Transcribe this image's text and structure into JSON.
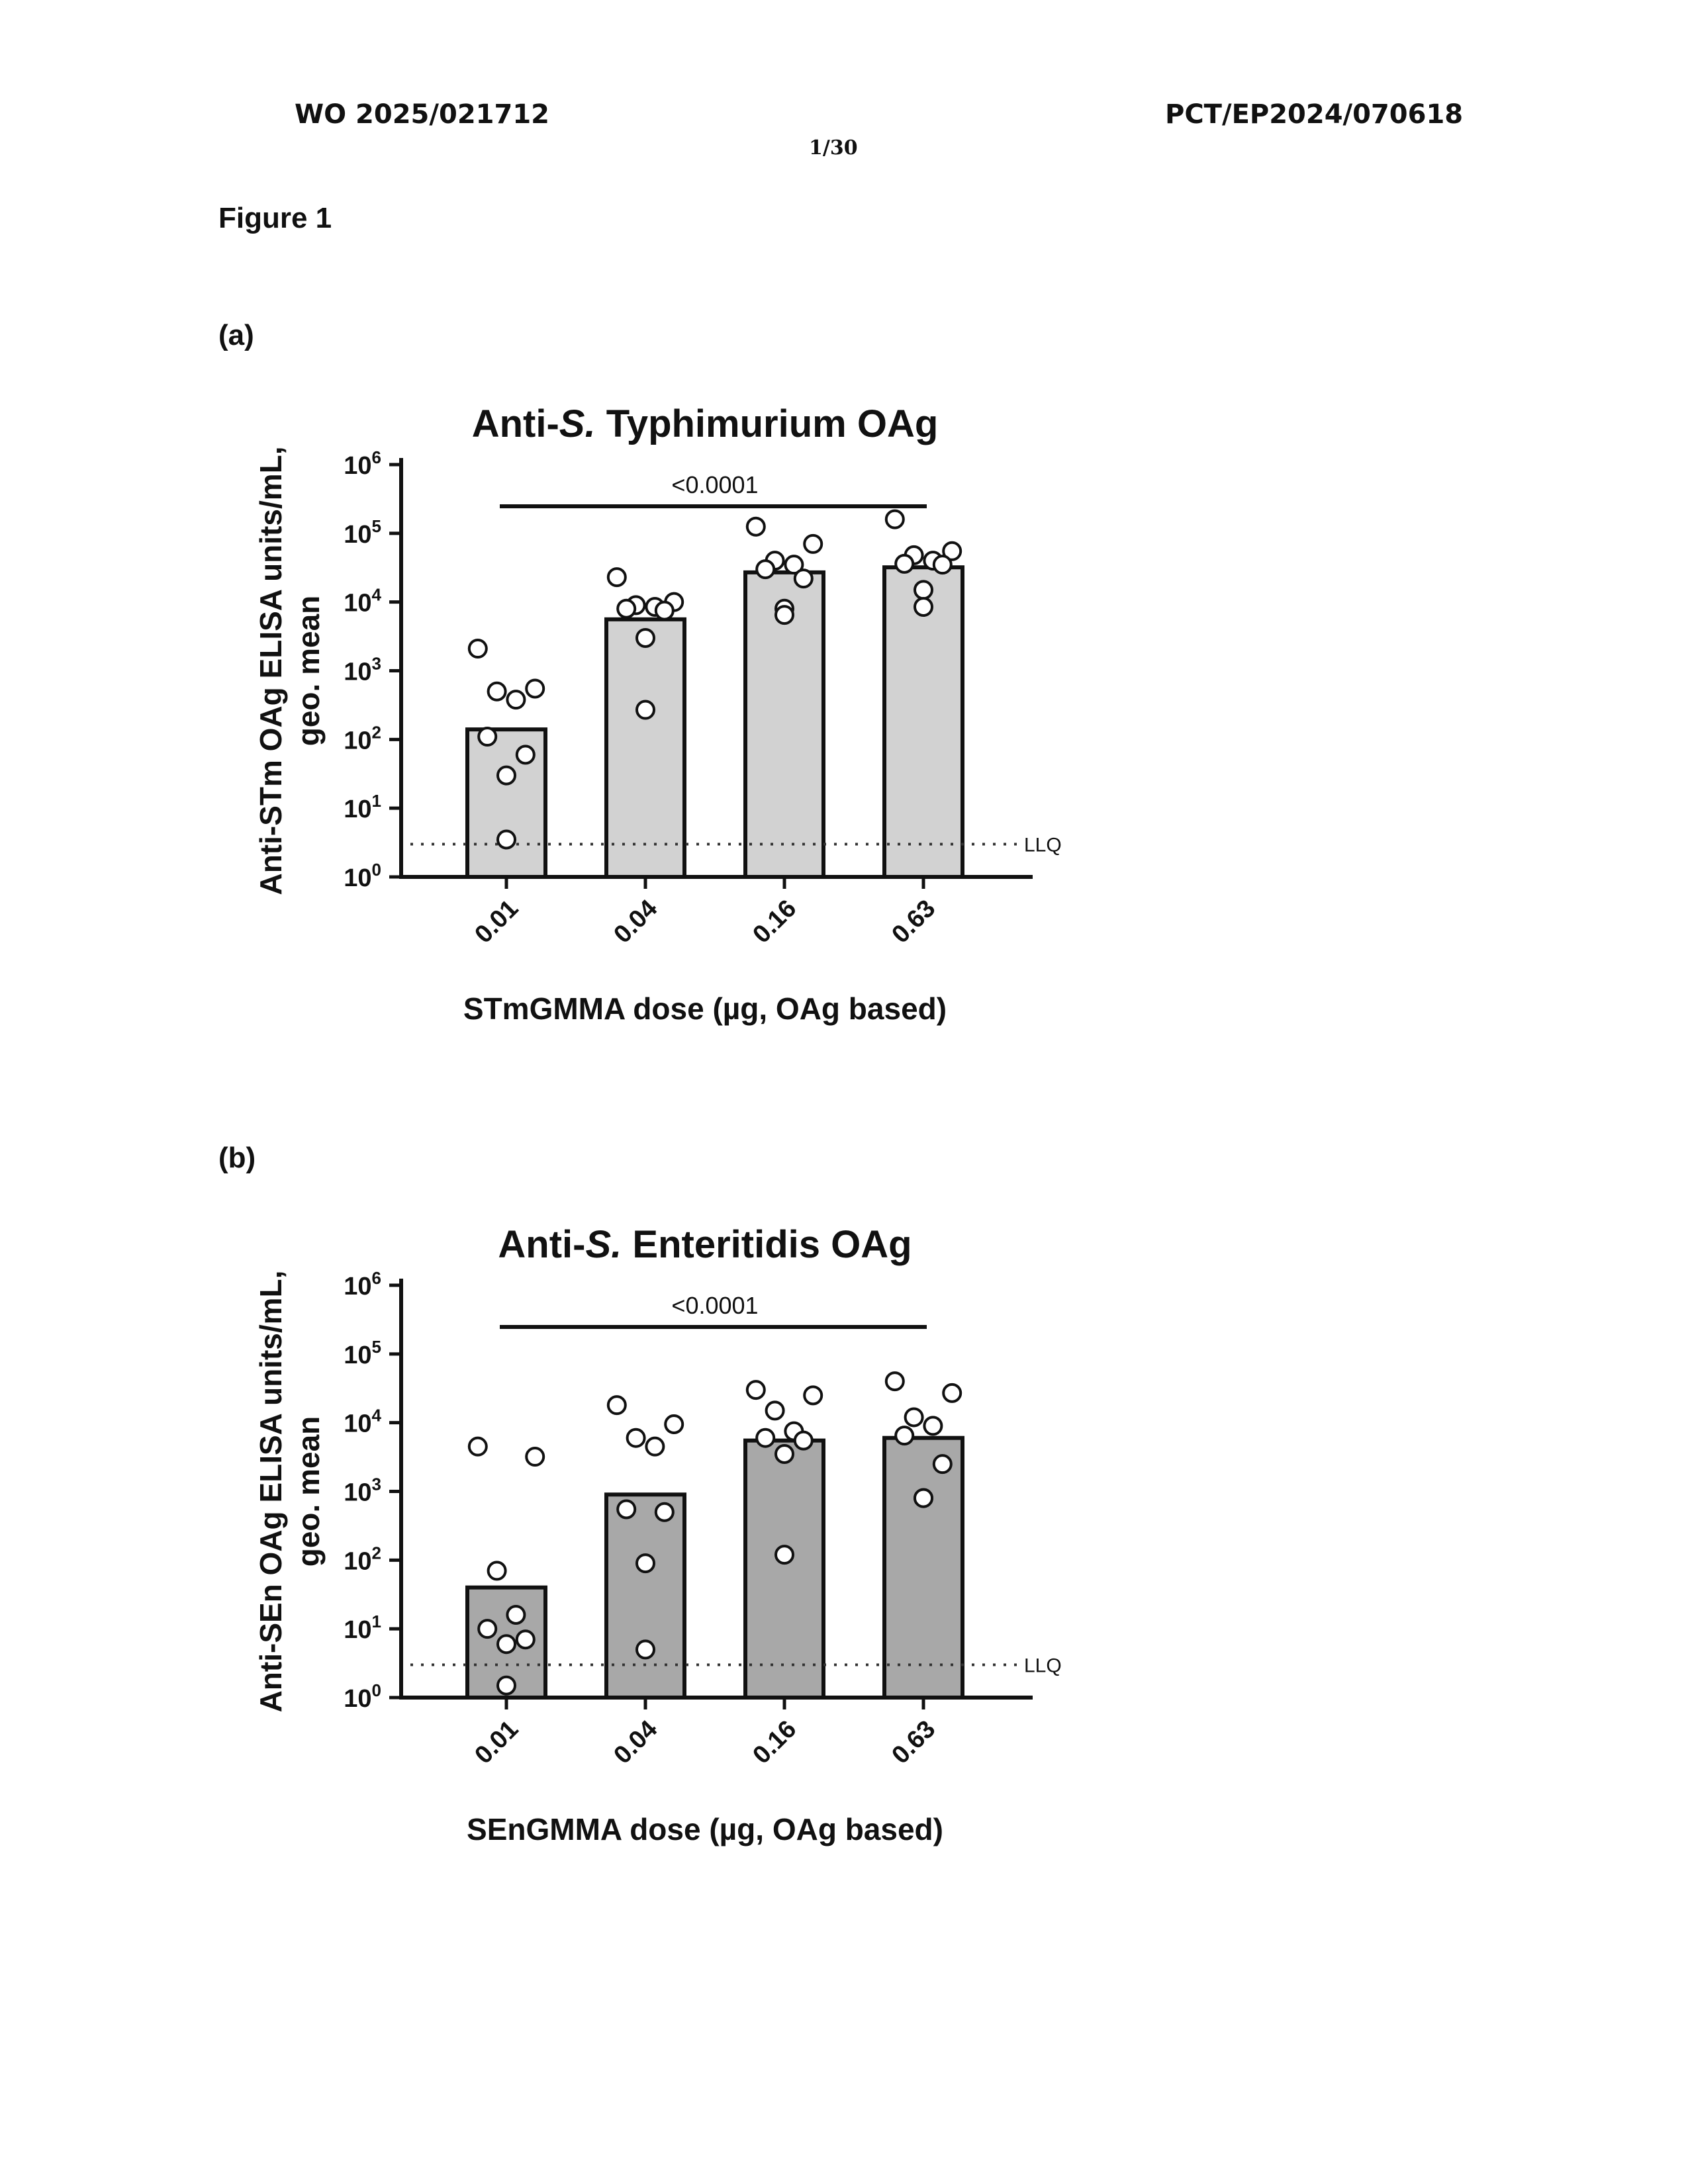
{
  "header": {
    "left": "WO 2025/021712",
    "right": "PCT/EP2024/070618",
    "page": "1/30"
  },
  "figure_label": "Figure 1",
  "panels": [
    {
      "label": "(a)"
    },
    {
      "label": "(b)"
    }
  ],
  "chart_data": [
    {
      "type": "bar",
      "title_prefix": "Anti-",
      "title_italic": "S.",
      "title_suffix": " Typhimurium OAg",
      "ylabel_line1": "Anti-STm OAg ELISA units/mL,",
      "ylabel_line2": "geo. mean",
      "xlabel": "STmGMMA dose (µg, OAg based)",
      "categories": [
        "0.01",
        "0.04",
        "0.16",
        "0.63"
      ],
      "y_scale": "log",
      "ylim": [
        1,
        1000000
      ],
      "yticks": [
        1,
        10,
        100,
        1000,
        10000,
        100000,
        1000000
      ],
      "ytick_bases": [
        "10",
        "10",
        "10",
        "10",
        "10",
        "10",
        "10"
      ],
      "ytick_exps": [
        "0",
        "1",
        "2",
        "3",
        "4",
        "5",
        "6"
      ],
      "values": [
        140,
        5600,
        27000,
        32000
      ],
      "points": [
        [
          2100,
          550,
          500,
          380,
          110,
          60,
          30,
          3.5
        ],
        [
          23000,
          10000,
          9000,
          8500,
          8000,
          7500,
          3000,
          270
        ],
        [
          125000,
          70000,
          40000,
          35000,
          30000,
          22000,
          8000,
          6500
        ],
        [
          160000,
          55000,
          48000,
          40000,
          36000,
          35000,
          15000,
          8500
        ]
      ],
      "bar_color": "#d2d2d2",
      "llq_value": 3,
      "llq_label": "LLQ",
      "significance": {
        "label": "<0.0001",
        "from": "0.01",
        "to": "0.63"
      }
    },
    {
      "type": "bar",
      "title_prefix": "Anti-",
      "title_italic": "S.",
      "title_suffix": " Enteritidis OAg",
      "ylabel_line1": "Anti-SEn OAg ELISA units/mL,",
      "ylabel_line2": "geo. mean",
      "xlabel": "SEnGMMA dose (µg, OAg based)",
      "categories": [
        "0.01",
        "0.04",
        "0.16",
        "0.63"
      ],
      "y_scale": "log",
      "ylim": [
        1,
        1000000
      ],
      "yticks": [
        1,
        10,
        100,
        1000,
        10000,
        100000,
        1000000
      ],
      "ytick_bases": [
        "10",
        "10",
        "10",
        "10",
        "10",
        "10",
        "10"
      ],
      "ytick_exps": [
        "0",
        "1",
        "2",
        "3",
        "4",
        "5",
        "6"
      ],
      "values": [
        40,
        900,
        5500,
        6000
      ],
      "points": [
        [
          4500,
          3200,
          70,
          16,
          10,
          7,
          6,
          1.5
        ],
        [
          18000,
          9500,
          6000,
          4500,
          550,
          500,
          90,
          5
        ],
        [
          30000,
          25000,
          15000,
          7500,
          6000,
          5500,
          3500,
          120
        ],
        [
          40000,
          27000,
          12000,
          9000,
          6500,
          2500,
          800,
          800
        ]
      ],
      "bar_color": "#a8a8a8",
      "llq_value": 3,
      "llq_label": "LLQ",
      "significance": {
        "label": "<0.0001",
        "from": "0.01",
        "to": "0.63"
      }
    }
  ]
}
